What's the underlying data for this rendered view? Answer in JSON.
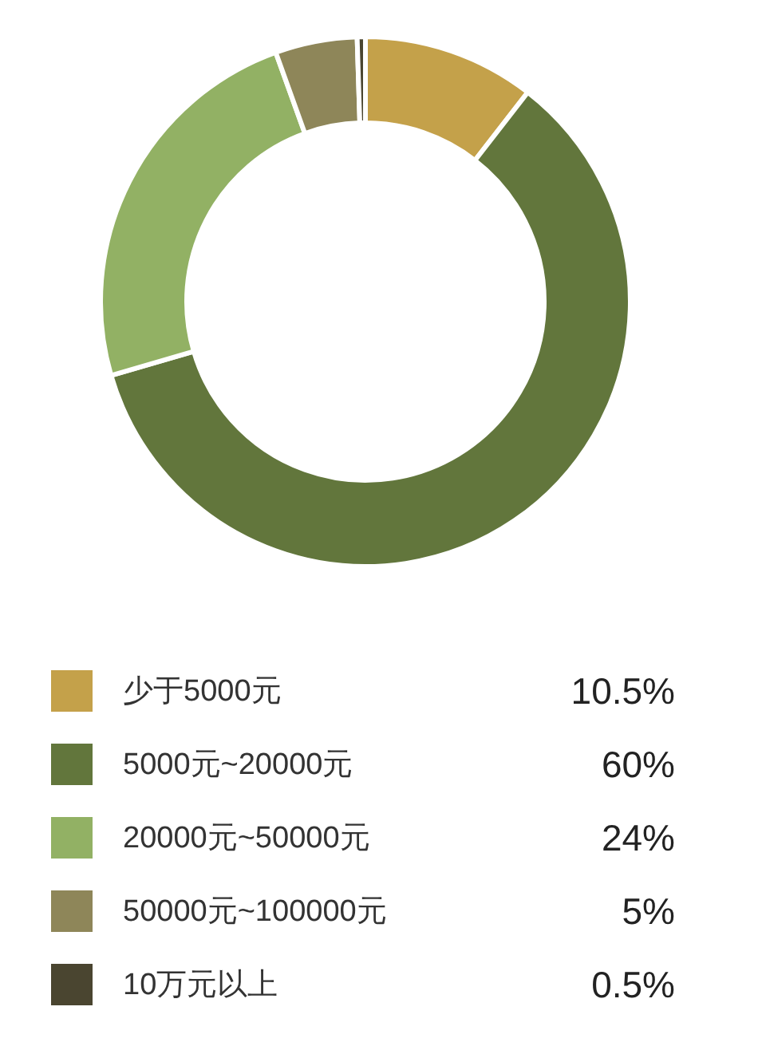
{
  "chart_data": {
    "type": "donut",
    "categories": [
      "少于5000元",
      "5000元~20000元",
      "20000元~50000元",
      "50000元~100000元",
      "10万元以上"
    ],
    "values": [
      10.5,
      60,
      24,
      5,
      0.5
    ],
    "value_labels": [
      "10.5%",
      "60%",
      "24%",
      "5%",
      "0.5%"
    ],
    "colors": [
      "#c4a14a",
      "#62763c",
      "#92b164",
      "#8e8659",
      "#4a4530"
    ],
    "legend": "bottom"
  }
}
